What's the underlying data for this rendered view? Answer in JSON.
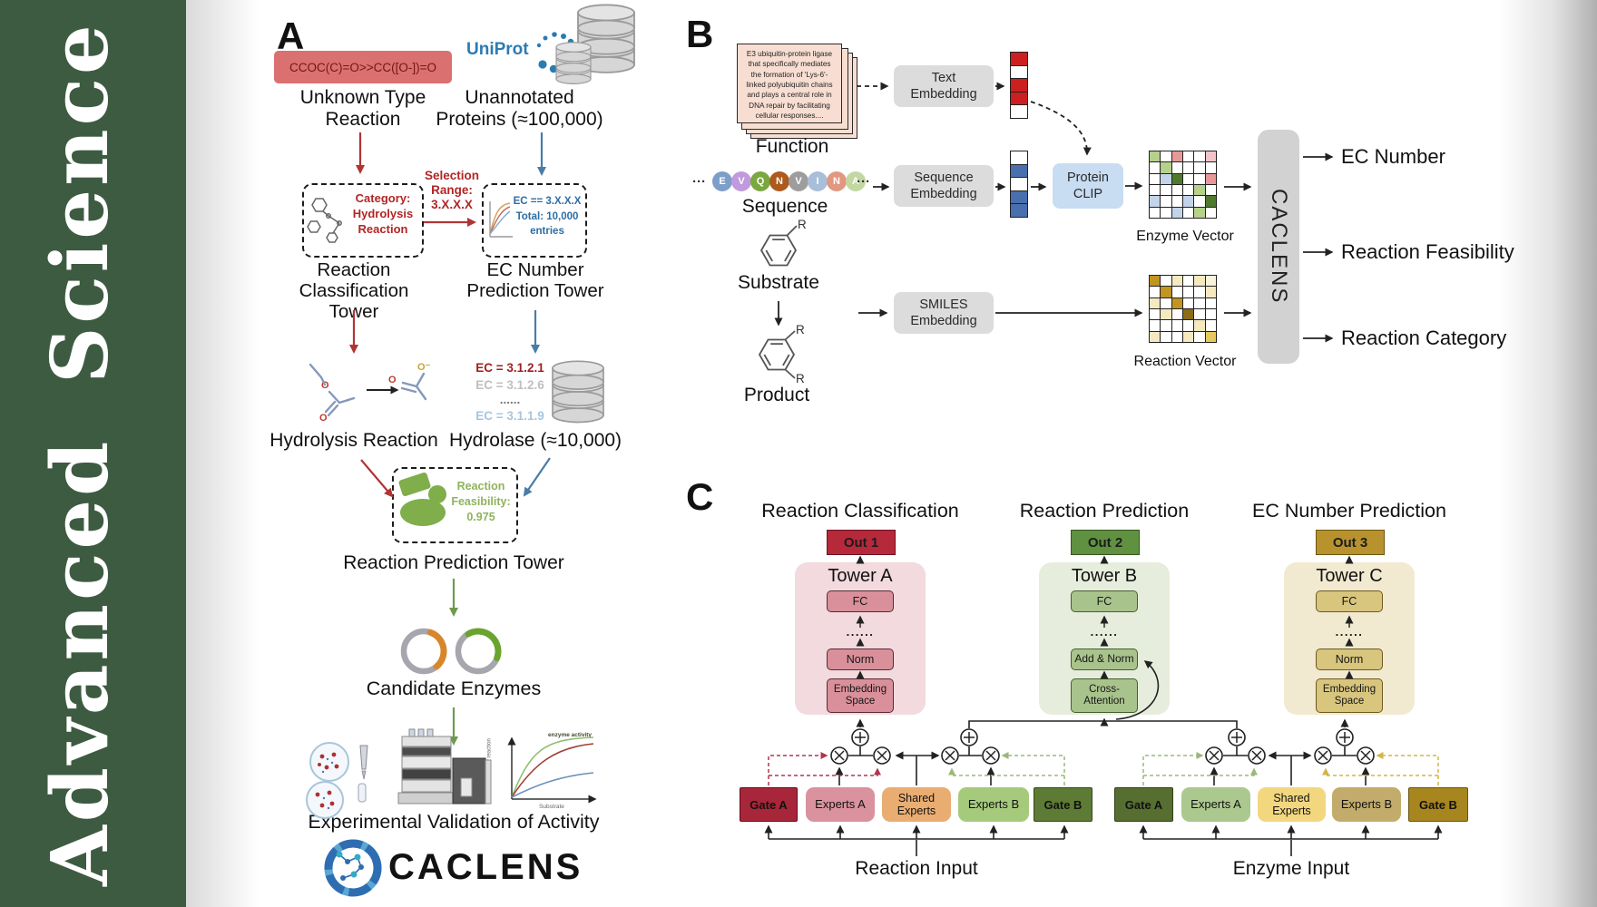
{
  "journal": {
    "name": "Advanced Science",
    "sidebar_color": "#3d5b41"
  },
  "panelA": {
    "label": "A",
    "smiles": "CCOC(C)=O>>CC([O-])=O",
    "unknown_label": "Unknown Type\nReaction",
    "uniprot": "UniProt",
    "unannotated_label": "Unannotated\nProteins (≈100,000)",
    "category_box": "Category:\nHydrolysis\nReaction",
    "selection_label": "Selection\nRange:\n3.X.X.X",
    "ec_box": "EC == 3.X.X.X\nTotal: 10,000\nentries",
    "tower1_label": "Reaction\nClassification Tower",
    "tower2_label": "EC Number\nPrediction Tower",
    "atoms": {
      "o": "O",
      "o_minus": "O⁻"
    },
    "ec_list": [
      "EC = 3.1.2.1",
      "EC = 3.1.2.6",
      "......",
      "EC = 3.1.1.9"
    ],
    "hydrolysis_label": "Hydrolysis Reaction",
    "hydrolase_label": "Hydrolase (≈10,000)",
    "enzyme_blob": "Enzyme",
    "feasibility_label": "Reaction\nFeasibility:\n0.975",
    "tower3_label": "Reaction Prediction Tower",
    "candidate_label": "Candidate Enzymes",
    "plot": {
      "annotation": "enzyme activity",
      "ylabel": "Rate of reaction",
      "xlabel": "Substrate"
    },
    "validation_label": "Experimental Validation of Activity",
    "wordmark": "CACLENS"
  },
  "panelB": {
    "label": "B",
    "function_card": "E3 ubiquitin-protein ligase that specifically mediates the formation of 'Lys-6'-linked polyubiquitin chains and plays a central role in DNA repair by facilitating cellular responses....",
    "function_label": "Function",
    "ellipsis": "···",
    "sequence_letters": [
      {
        "ch": "E",
        "color": "#7d9ec8"
      },
      {
        "ch": "V",
        "color": "#c19ade"
      },
      {
        "ch": "Q",
        "color": "#7aa83f"
      },
      {
        "ch": "N",
        "color": "#ad5a1e"
      },
      {
        "ch": "V",
        "color": "#9d9d9d"
      },
      {
        "ch": "I",
        "color": "#a9bed8"
      },
      {
        "ch": "N",
        "color": "#e29781"
      },
      {
        "ch": "A",
        "color": "#c3d7a2"
      }
    ],
    "sequence_label": "Sequence",
    "substrate_label": "Substrate",
    "product_label": "Product",
    "r_label": "R",
    "text_embedding": "Text\nEmbedding",
    "sequence_embedding": "Sequence\nEmbedding",
    "smiles_embedding": "SMILES\nEmbedding",
    "protein_clip": "Protein\nCLIP",
    "text_vector": [
      "#cc2020",
      "#ffffff",
      "#cc2020",
      "#cc2020",
      "#ffffff"
    ],
    "sequence_vector": [
      "#ffffff",
      "#4a6fae",
      "#ffffff",
      "#4a6fae",
      "#4a6fae"
    ],
    "enzyme_matrix": [
      [
        "#b5d18a",
        "#ffffff",
        "#e89898",
        "#ffffff",
        "#ffffff",
        "#f2c4c9"
      ],
      [
        "#ffffff",
        "#b5d18a",
        "#ffffff",
        "#ffffff",
        "#ffffff",
        "#ffffff"
      ],
      [
        "#ffffff",
        "#c3d4ea",
        "#4f7a2e",
        "#ffffff",
        "#ffffff",
        "#e89898"
      ],
      [
        "#ffffff",
        "#ffffff",
        "#ffffff",
        "#ffffff",
        "#b5d18a",
        "#ffffff"
      ],
      [
        "#c3d4ea",
        "#ffffff",
        "#ffffff",
        "#c3d4ea",
        "#ffffff",
        "#4f7a2e"
      ],
      [
        "#ffffff",
        "#ffffff",
        "#c3d4ea",
        "#ffffff",
        "#b5d18a",
        "#ffffff"
      ]
    ],
    "reaction_matrix": [
      [
        "#c29420",
        "#ffffff",
        "#f5e9c0",
        "#ffffff",
        "#f5e9c0",
        "#faf3dc"
      ],
      [
        "#ffffff",
        "#c29420",
        "#ffffff",
        "#ffffff",
        "#ffffff",
        "#f5e9c0"
      ],
      [
        "#f5e9c0",
        "#ffffff",
        "#c29420",
        "#ffffff",
        "#ffffff",
        "#ffffff"
      ],
      [
        "#ffffff",
        "#f5e9c0",
        "#ffffff",
        "#8a6d14",
        "#ffffff",
        "#ffffff"
      ],
      [
        "#ffffff",
        "#ffffff",
        "#ffffff",
        "#ffffff",
        "#f5e9c0",
        "#ffffff"
      ],
      [
        "#f5e9c0",
        "#ffffff",
        "#ffffff",
        "#f5e9c0",
        "#ffffff",
        "#e8c95c"
      ]
    ],
    "enzyme_vector_label": "Enzyme Vector",
    "reaction_vector_label": "Reaction Vector",
    "caclens_bar": "CACLENS",
    "outputs": [
      "EC Number",
      "Reaction Feasibility",
      "Reaction Category"
    ]
  },
  "panelC": {
    "label": "C",
    "columns": [
      {
        "header": "Reaction Classification",
        "out": "Out 1",
        "out_bg": "#b5293b",
        "tower": "Tower A",
        "fc": "FC",
        "dots": "......",
        "mid": "Norm",
        "bottom": "Embedding\nSpace"
      },
      {
        "header": "Reaction Prediction",
        "out": "Out 2",
        "out_bg": "#5f9140",
        "tower": "Tower B",
        "fc": "FC",
        "dots": "......",
        "mid": "Add & Norm",
        "bottom": "Cross-\nAttention"
      },
      {
        "header": "EC Number Prediction",
        "out": "Out 3",
        "out_bg": "#b8922c",
        "tower": "Tower C",
        "fc": "FC",
        "dots": "......",
        "mid": "Norm",
        "bottom": "Embedding\nSpace"
      }
    ],
    "groups": [
      {
        "label": "Reaction Input",
        "boxes": [
          {
            "name": "Gate A",
            "bg": "#a82639"
          },
          {
            "name": "Experts A",
            "bg": "#d9929e"
          },
          {
            "name": "Shared\nExperts",
            "bg": "#e9ad72"
          },
          {
            "name": "Experts B",
            "bg": "#a6ca7c"
          },
          {
            "name": "Gate B",
            "bg": "#5d7b35"
          }
        ]
      },
      {
        "label": "Enzyme Input",
        "boxes": [
          {
            "name": "Gate A",
            "bg": "#566f31"
          },
          {
            "name": "Experts A",
            "bg": "#abc88e"
          },
          {
            "name": "Shared\nExperts",
            "bg": "#f2d77f"
          },
          {
            "name": "Experts B",
            "bg": "#c3ac6b"
          },
          {
            "name": "Gate B",
            "bg": "#a8861f"
          }
        ]
      }
    ]
  }
}
